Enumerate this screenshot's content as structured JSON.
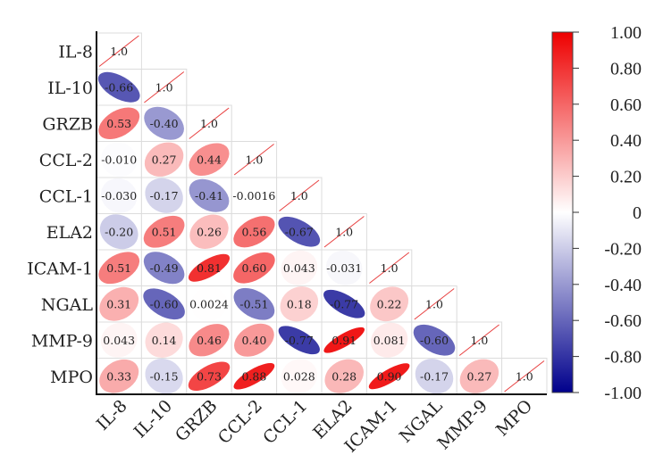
{
  "chart_data": {
    "type": "heatmap",
    "style": "lower-triangle correlation matrix with ellipses",
    "labels": [
      "IL-8",
      "IL-10",
      "GRZB",
      "CCL-2",
      "CCL-1",
      "ELA2",
      "ICAM-1",
      "NGAL",
      "MMP-9",
      "MPO"
    ],
    "matrix": [
      [
        "1.0"
      ],
      [
        "-0.66",
        "1.0"
      ],
      [
        "0.53",
        "-0.40",
        "1.0"
      ],
      [
        "-0.010",
        "0.27",
        "0.44",
        "1.0"
      ],
      [
        "-0.030",
        "-0.17",
        "-0.41",
        "-0.0016",
        "1.0"
      ],
      [
        "-0.20",
        "0.51",
        "0.26",
        "0.56",
        "-0.67",
        "1.0"
      ],
      [
        "0.51",
        "-0.49",
        "0.81",
        "0.60",
        "0.043",
        "-0.031",
        "1.0"
      ],
      [
        "0.31",
        "-0.60",
        "0.0024",
        "-0.51",
        "0.18",
        "-0.77",
        "0.22",
        "1.0"
      ],
      [
        "0.043",
        "0.14",
        "0.46",
        "0.40",
        "-0.77",
        "0.91",
        "0.081",
        "-0.60",
        "1.0"
      ],
      [
        "0.33",
        "-0.15",
        "0.73",
        "0.88",
        "0.028",
        "0.28",
        "0.90",
        "-0.17",
        "0.27",
        "1.0"
      ]
    ],
    "colorbar": {
      "range": [
        -1,
        1
      ],
      "ticks": [
        "1.00",
        "0.80",
        "0.60",
        "0.40",
        "0.20",
        "0",
        "-0.20",
        "-0.40",
        "-0.60",
        "-0.80",
        "-1.00"
      ],
      "tick_values": [
        1,
        0.8,
        0.6,
        0.4,
        0.2,
        0,
        -0.2,
        -0.4,
        -0.6,
        -0.8,
        -1
      ],
      "colors": {
        "neg": "#00008c",
        "mid": "#ffffff",
        "pos": "#ee0000"
      }
    },
    "diagonal_line_color": "#e84040"
  }
}
